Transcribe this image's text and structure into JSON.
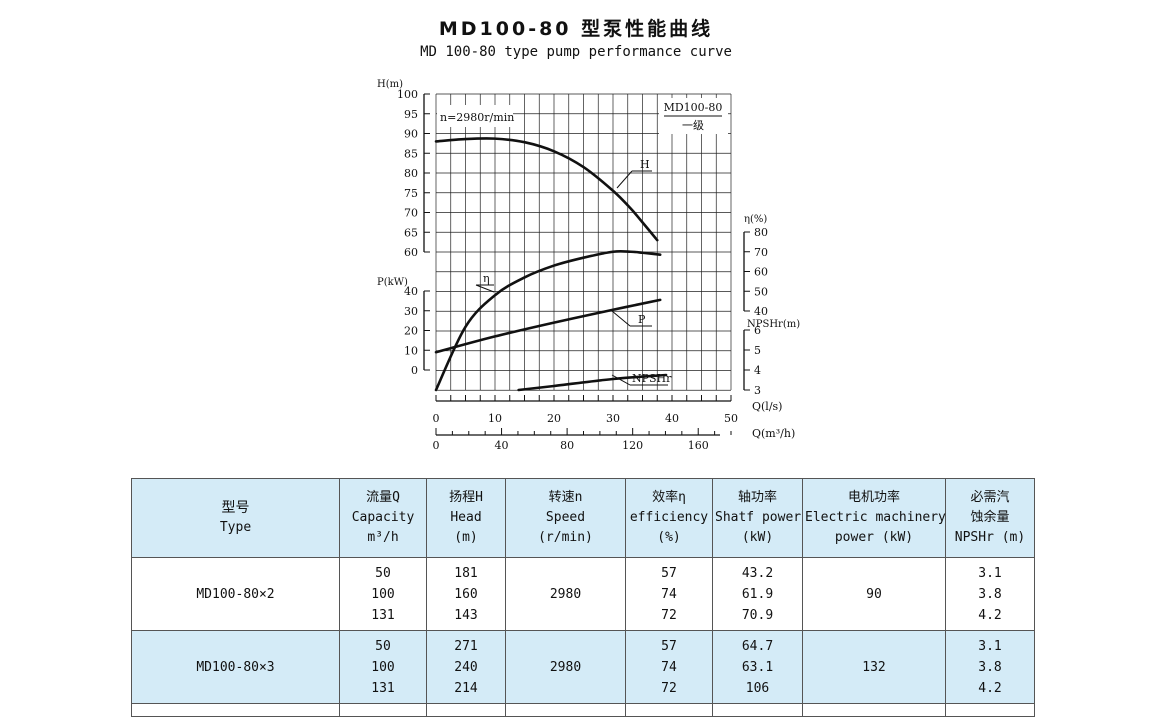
{
  "title_cn": "MD100-80 型泵性能曲线",
  "title_en": "MD 100-80 type pump performance curve",
  "chart_data": {
    "type": "line",
    "speed_note": "n=2980r/min",
    "legend_box": {
      "model": "MD100-80",
      "stage": "一级"
    },
    "x_axis": {
      "label": "Q(l/s)",
      "ticks": [
        0,
        10,
        20,
        30,
        40,
        50
      ],
      "range": [
        0,
        50
      ]
    },
    "x_axis_secondary": {
      "label": "Q(m³/h)",
      "ticks": [
        0,
        40,
        80,
        120,
        160
      ]
    },
    "axes": {
      "H": {
        "label": "H(m)",
        "ticks": [
          60,
          65,
          70,
          75,
          80,
          85,
          90,
          95,
          100
        ],
        "range": [
          60,
          100
        ]
      },
      "P": {
        "label": "P(kW)",
        "ticks": [
          0,
          10,
          20,
          30,
          40
        ],
        "range": [
          0,
          40
        ]
      },
      "eta": {
        "label": "η(%)",
        "ticks": [
          40,
          50,
          60,
          70,
          80
        ],
        "range": [
          40,
          80
        ]
      },
      "NPSHr": {
        "label": "NPSHr(m)",
        "ticks": [
          3,
          4,
          5,
          6
        ],
        "range": [
          3,
          6
        ]
      }
    },
    "grid": true,
    "series": [
      {
        "name": "H",
        "axis": "H",
        "x": [
          0,
          5,
          10,
          15,
          20,
          25,
          30,
          33,
          35,
          37.5
        ],
        "y": [
          88,
          88.6,
          88.7,
          87.8,
          85.5,
          81.5,
          75.5,
          71,
          67.5,
          63
        ]
      },
      {
        "name": "η",
        "axis": "eta",
        "x": [
          0,
          5,
          10,
          15,
          20,
          25,
          30,
          33,
          35,
          38
        ],
        "y": [
          0,
          32,
          48,
          57,
          63,
          67,
          70,
          70,
          69.5,
          68.5
        ]
      },
      {
        "name": "P",
        "axis": "P",
        "x": [
          0,
          10,
          20,
          30,
          38
        ],
        "y": [
          9,
          17,
          24,
          30.5,
          35.5
        ]
      },
      {
        "name": "NPSHr",
        "axis": "NPSHr",
        "x": [
          14,
          20,
          30,
          39
        ],
        "y": [
          3,
          3.2,
          3.55,
          3.75
        ]
      }
    ]
  },
  "table": {
    "headers": [
      [
        "型号",
        "Type"
      ],
      [
        "流量Q",
        "Capacity",
        "m³/h"
      ],
      [
        "扬程H",
        "Head",
        "(m)"
      ],
      [
        "转速n",
        "Speed",
        "(r/min)"
      ],
      [
        "效率η",
        "efficiency",
        "(%)"
      ],
      [
        "轴功率",
        "Shatf power",
        "(kW)"
      ],
      [
        "电机功率",
        "Electric machinery",
        "power  (kW)"
      ],
      [
        "必需汽",
        "蚀余量",
        "NPSHr (m)"
      ]
    ],
    "rows": [
      {
        "type": "MD100-80×2",
        "capacity": [
          "50",
          "100",
          "131"
        ],
        "head": [
          "181",
          "160",
          "143"
        ],
        "speed": "2980",
        "efficiency": [
          "57",
          "74",
          "72"
        ],
        "shaft_power": [
          "43.2",
          "61.9",
          "70.9"
        ],
        "motor_power": "90",
        "npshr": [
          "3.1",
          "3.8",
          "4.2"
        ]
      },
      {
        "type": "MD100-80×3",
        "capacity": [
          "50",
          "100",
          "131"
        ],
        "head": [
          "271",
          "240",
          "214"
        ],
        "speed": "2980",
        "efficiency": [
          "57",
          "74",
          "72"
        ],
        "shaft_power": [
          "64.7",
          "63.1",
          "106"
        ],
        "motor_power": "132",
        "npshr": [
          "3.1",
          "3.8",
          "4.2"
        ]
      }
    ]
  }
}
